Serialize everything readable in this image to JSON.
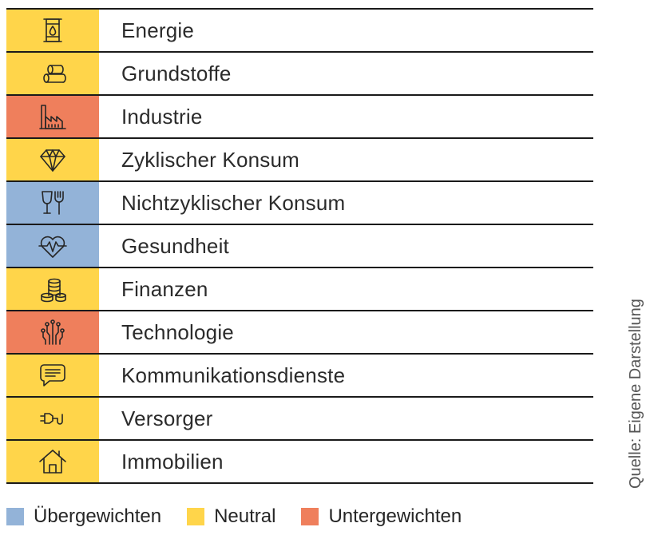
{
  "colors": {
    "uebergewichten": "#93B3D8",
    "neutral": "#FFD54A",
    "untergewichten": "#EF7F5C"
  },
  "sectors": [
    {
      "label": "Energie",
      "rating": "neutral",
      "icon": "oil-barrel-icon"
    },
    {
      "label": "Grundstoffe",
      "rating": "neutral",
      "icon": "raw-materials-icon"
    },
    {
      "label": "Industrie",
      "rating": "untergewichten",
      "icon": "factory-icon"
    },
    {
      "label": "Zyklischer Konsum",
      "rating": "neutral",
      "icon": "diamond-icon"
    },
    {
      "label": "Nichtzyklischer Konsum",
      "rating": "uebergewichten",
      "icon": "glass-fork-icon"
    },
    {
      "label": "Gesundheit",
      "rating": "uebergewichten",
      "icon": "heartbeat-icon"
    },
    {
      "label": "Finanzen",
      "rating": "neutral",
      "icon": "coins-icon"
    },
    {
      "label": "Technologie",
      "rating": "untergewichten",
      "icon": "circuit-icon"
    },
    {
      "label": "Kommunikationsdienste",
      "rating": "neutral",
      "icon": "chat-bubble-icon"
    },
    {
      "label": "Versorger",
      "rating": "neutral",
      "icon": "power-plug-icon"
    },
    {
      "label": "Immobilien",
      "rating": "neutral",
      "icon": "house-icon"
    }
  ],
  "legend": [
    {
      "label": "Übergewichten",
      "rating": "uebergewichten"
    },
    {
      "label": "Neutral",
      "rating": "neutral"
    },
    {
      "label": "Untergewichten",
      "rating": "untergewichten"
    }
  ],
  "source": "Quelle: Eigene Darstellung"
}
